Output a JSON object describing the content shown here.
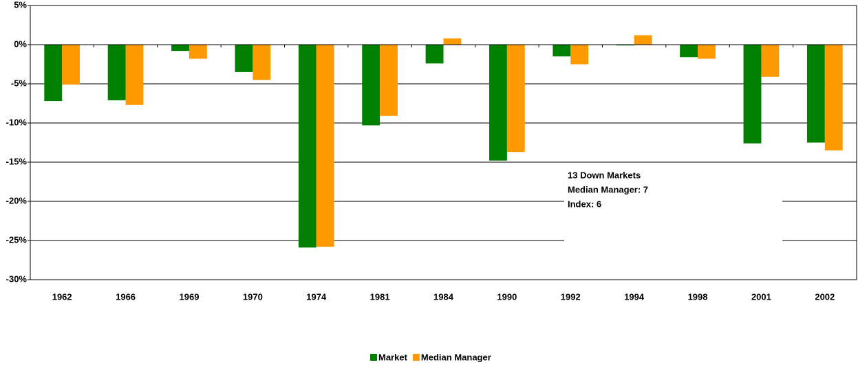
{
  "chart_data": {
    "type": "bar",
    "categories": [
      "1962",
      "1966",
      "1969",
      "1970",
      "1974",
      "1981",
      "1984",
      "1990",
      "1992",
      "1994",
      "1998",
      "2001",
      "2002"
    ],
    "series": [
      {
        "name": "Market",
        "color": "#008000",
        "values": [
          -7.2,
          -7.1,
          -0.8,
          -3.5,
          -25.9,
          -10.3,
          -2.4,
          -14.8,
          -1.5,
          -0.1,
          -1.6,
          -12.6,
          -12.5
        ]
      },
      {
        "name": "Median Manager",
        "color": "#FF9900",
        "values": [
          -5.1,
          -7.7,
          -1.8,
          -4.5,
          -25.8,
          -9.1,
          0.8,
          -13.7,
          -2.5,
          1.2,
          -1.8,
          -4.1,
          -13.5
        ]
      }
    ],
    "ylim": [
      -30,
      5
    ],
    "yticks": [
      {
        "value": -30,
        "label": "-30%"
      },
      {
        "value": -25,
        "label": "-25%"
      },
      {
        "value": -20,
        "label": "-20%"
      },
      {
        "value": -15,
        "label": "-15%"
      },
      {
        "value": -10,
        "label": "-10%"
      },
      {
        "value": -5,
        "label": "-5%"
      },
      {
        "value": 0,
        "label": "0%"
      },
      {
        "value": 5,
        "label": "5%"
      }
    ],
    "grid": true,
    "legend": "bottom",
    "annotations": [
      "13 Down Markets",
      "Median Manager: 7",
      "Index: 6"
    ]
  }
}
